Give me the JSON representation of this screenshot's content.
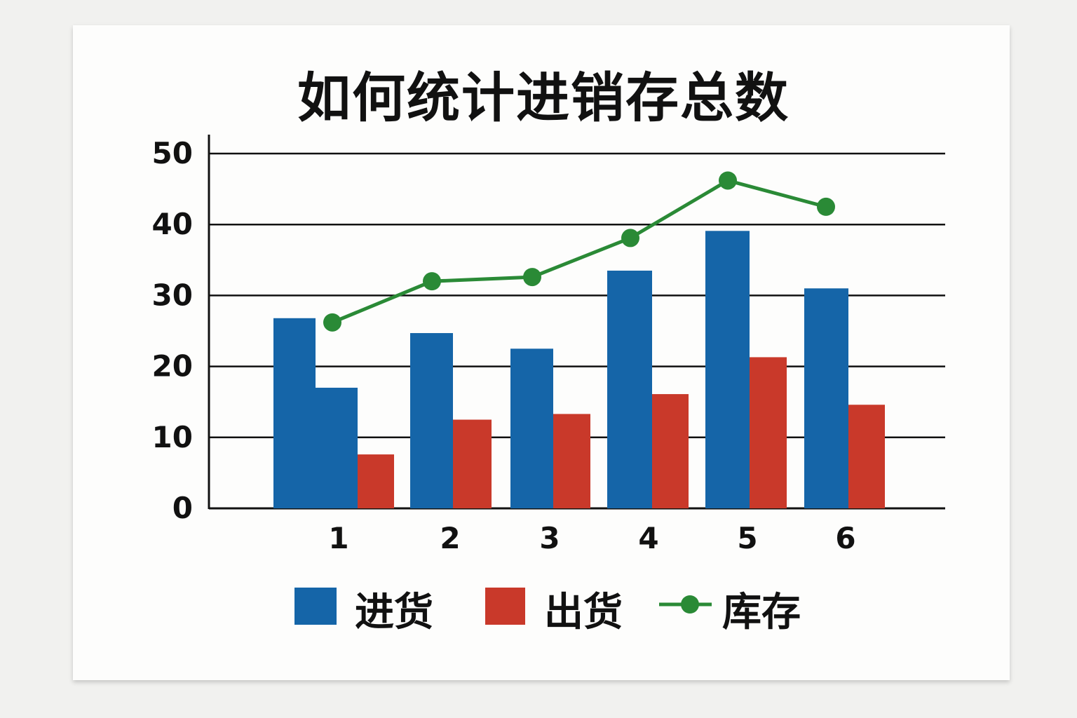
{
  "chart_data": {
    "type": "bar",
    "title": "如何统计进销存总数",
    "xlabel": "",
    "ylabel": "",
    "categories": [
      "1",
      "2",
      "3",
      "4",
      "5",
      "6"
    ],
    "yticks": [
      "0",
      "10",
      "20",
      "30",
      "40",
      "50"
    ],
    "ylim": [
      0,
      50
    ],
    "grid": true,
    "legend_position": "bottom",
    "series": [
      {
        "name": "进货",
        "type": "bar",
        "color": "#1565a8",
        "values": [
          17.0,
          24.7,
          22.5,
          33.5,
          39.1,
          31.0
        ]
      },
      {
        "name": "出货",
        "type": "bar",
        "color": "#c9392a",
        "values": [
          7.6,
          12.5,
          13.3,
          16.1,
          21.3,
          14.6
        ]
      },
      {
        "name": "库存",
        "type": "line",
        "color": "#2a8a36",
        "values": [
          26.2,
          32.0,
          32.6,
          38.1,
          46.2,
          42.5
        ]
      },
      {
        "type": "bar",
        "color": "#1565a8",
        "values": [
          26.8,
          null,
          null,
          null,
          null,
          null
        ]
      }
    ]
  }
}
